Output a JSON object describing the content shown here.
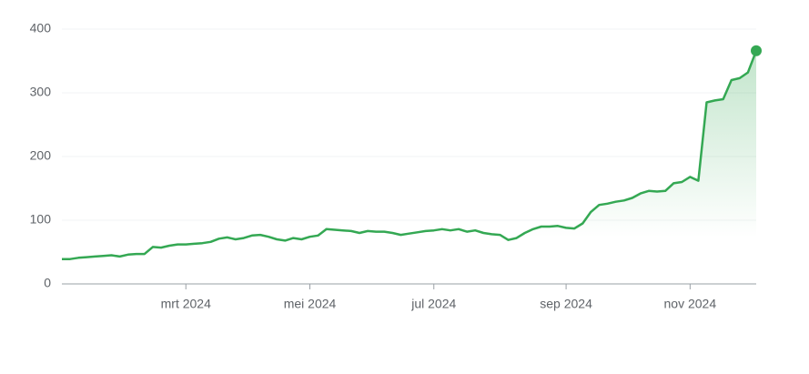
{
  "chart_data": {
    "type": "line",
    "categories": [
      null,
      null,
      null,
      null,
      null,
      null,
      null,
      null,
      null,
      null,
      null,
      null,
      null,
      null,
      null,
      "mrt 2024",
      null,
      null,
      null,
      null,
      null,
      null,
      null,
      null,
      null,
      null,
      null,
      null,
      null,
      null,
      "mei 2024",
      null,
      null,
      null,
      null,
      null,
      null,
      null,
      null,
      null,
      null,
      null,
      null,
      null,
      null,
      "jul 2024",
      null,
      null,
      null,
      null,
      null,
      null,
      null,
      null,
      null,
      null,
      null,
      null,
      null,
      null,
      null,
      "sep 2024",
      null,
      null,
      null,
      null,
      null,
      null,
      null,
      null,
      null,
      null,
      null,
      null,
      null,
      null,
      "nov 2024",
      null,
      null,
      null,
      null,
      null,
      null,
      null,
      null
    ],
    "series": [
      {
        "color": "#34a853",
        "values": [
          39,
          39,
          41,
          42,
          43,
          44,
          45,
          43,
          46,
          47,
          47,
          58,
          57,
          60,
          62,
          62,
          63,
          64,
          66,
          71,
          73,
          70,
          72,
          76,
          77,
          74,
          70,
          68,
          72,
          70,
          74,
          76,
          86,
          85,
          84,
          83,
          80,
          83,
          82,
          82,
          80,
          77,
          79,
          81,
          83,
          84,
          86,
          84,
          86,
          82,
          84,
          80,
          78,
          77,
          69,
          72,
          80,
          86,
          90,
          90,
          91,
          88,
          87,
          95,
          113,
          124,
          126,
          129,
          131,
          135,
          142,
          146,
          145,
          146,
          158,
          160,
          168,
          162,
          285,
          288,
          290,
          320,
          323,
          332,
          366
        ]
      }
    ],
    "ylim": [
      0,
      400
    ],
    "yticks": [
      0,
      100,
      200,
      300,
      400
    ],
    "grid": true
  }
}
